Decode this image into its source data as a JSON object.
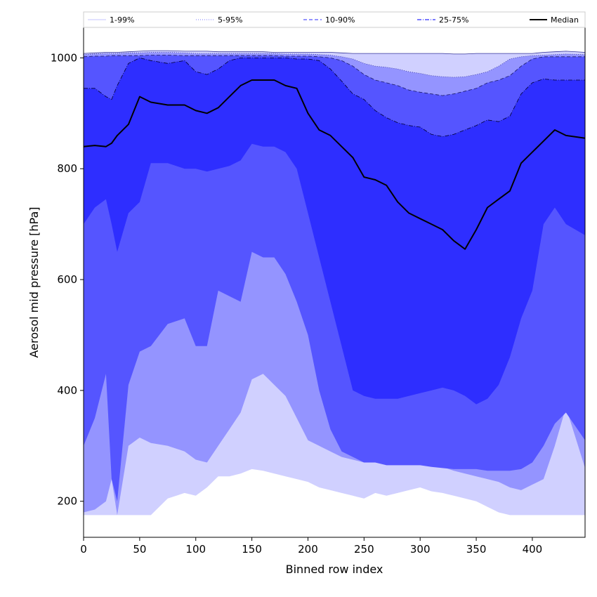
{
  "chart_data": {
    "type": "area",
    "title": "",
    "xlabel": "Binned row index",
    "ylabel": "Aerosol mid pressure [hPa]",
    "xlim": [
      0,
      447
    ],
    "ylim": [
      135,
      1055
    ],
    "xticks": [
      0,
      50,
      100,
      150,
      200,
      250,
      300,
      350,
      400
    ],
    "yticks": [
      200,
      400,
      600,
      800,
      1000
    ],
    "grid": false,
    "legend_position": "top",
    "x": [
      0,
      10,
      20,
      25,
      30,
      40,
      50,
      60,
      75,
      90,
      100,
      110,
      120,
      130,
      140,
      150,
      160,
      170,
      180,
      190,
      200,
      210,
      220,
      230,
      240,
      250,
      260,
      270,
      280,
      290,
      300,
      310,
      320,
      330,
      340,
      350,
      360,
      370,
      380,
      390,
      400,
      410,
      420,
      430,
      447
    ],
    "bands": [
      {
        "name": "1-99%",
        "color": "#d0d0ff",
        "lower": [
          175,
          175,
          175,
          175,
          175,
          175,
          175,
          175,
          205,
          215,
          210,
          225,
          245,
          245,
          250,
          258,
          255,
          250,
          245,
          240,
          235,
          225,
          220,
          215,
          210,
          205,
          215,
          210,
          215,
          220,
          225,
          218,
          215,
          210,
          205,
          200,
          190,
          180,
          175,
          175,
          175,
          175,
          175,
          175,
          175
        ],
        "upper": [
          1008,
          1009,
          1010,
          1010,
          1010,
          1011,
          1012,
          1013,
          1013,
          1012,
          1012,
          1012,
          1011,
          1011,
          1011,
          1011,
          1011,
          1010,
          1010,
          1010,
          1010,
          1010,
          1010,
          1009,
          1008,
          1008,
          1008,
          1008,
          1008,
          1008,
          1008,
          1008,
          1008,
          1007,
          1007,
          1008,
          1008,
          1008,
          1008,
          1008,
          1008,
          1010,
          1011,
          1012,
          1010
        ]
      },
      {
        "name": "5-95%",
        "color": "#9494ff",
        "lower": [
          180,
          185,
          200,
          240,
          175,
          300,
          315,
          305,
          300,
          290,
          275,
          270,
          300,
          330,
          360,
          420,
          430,
          410,
          390,
          350,
          310,
          300,
          290,
          280,
          275,
          270,
          270,
          268,
          268,
          268,
          268,
          265,
          262,
          255,
          250,
          245,
          240,
          235,
          225,
          220,
          230,
          240,
          300,
          370,
          260
        ],
        "upper": [
          1006,
          1007,
          1008,
          1008,
          1008,
          1009,
          1009,
          1010,
          1010,
          1009,
          1008,
          1008,
          1008,
          1008,
          1008,
          1008,
          1008,
          1008,
          1007,
          1007,
          1007,
          1006,
          1005,
          1002,
          998,
          990,
          985,
          983,
          980,
          975,
          972,
          968,
          966,
          965,
          966,
          970,
          975,
          985,
          998,
          1002,
          1004,
          1005,
          1006,
          1007,
          1006
        ]
      },
      {
        "name": "10-90%",
        "color": "#5555ff",
        "lower": [
          300,
          350,
          430,
          240,
          200,
          410,
          470,
          480,
          520,
          530,
          480,
          480,
          580,
          570,
          560,
          650,
          640,
          640,
          610,
          560,
          500,
          400,
          330,
          290,
          280,
          270,
          270,
          265,
          265,
          265,
          265,
          262,
          260,
          258,
          258,
          258,
          255,
          255,
          255,
          258,
          270,
          300,
          340,
          360,
          310
        ],
        "upper": [
          1002,
          1003,
          1003,
          1004,
          1004,
          1004,
          1004,
          1005,
          1005,
          1004,
          1004,
          1004,
          1004,
          1004,
          1004,
          1004,
          1004,
          1004,
          1003,
          1003,
          1003,
          1002,
          1000,
          995,
          985,
          970,
          960,
          955,
          950,
          942,
          938,
          935,
          932,
          935,
          940,
          945,
          955,
          960,
          968,
          985,
          998,
          1002,
          1002,
          1002,
          1002
        ]
      },
      {
        "name": "25-75%",
        "color": "#2e2eff",
        "lower": [
          700,
          730,
          745,
          700,
          650,
          720,
          740,
          810,
          810,
          800,
          800,
          795,
          800,
          805,
          815,
          845,
          840,
          840,
          830,
          800,
          720,
          640,
          560,
          480,
          400,
          390,
          385,
          385,
          385,
          390,
          395,
          400,
          405,
          400,
          390,
          375,
          385,
          410,
          460,
          530,
          580,
          700,
          730,
          700,
          680
        ],
        "upper": [
          945,
          945,
          930,
          925,
          950,
          990,
          1000,
          995,
          990,
          995,
          975,
          970,
          980,
          995,
          1000,
          1000,
          1000,
          1000,
          1000,
          998,
          998,
          995,
          980,
          958,
          935,
          925,
          905,
          892,
          883,
          878,
          875,
          862,
          858,
          862,
          870,
          878,
          888,
          885,
          895,
          935,
          955,
          962,
          960,
          960,
          960
        ]
      }
    ],
    "series": [
      {
        "name": "Median",
        "color": "#000000",
        "values": [
          840,
          842,
          840,
          846,
          860,
          880,
          930,
          920,
          915,
          915,
          905,
          900,
          910,
          930,
          950,
          960,
          960,
          960,
          950,
          945,
          900,
          870,
          860,
          840,
          820,
          785,
          780,
          770,
          740,
          720,
          710,
          700,
          690,
          670,
          655,
          690,
          730,
          745,
          760,
          810,
          830,
          850,
          870,
          860,
          855
        ]
      }
    ],
    "legend": [
      {
        "label": "1-99%",
        "color": "#d0d0ff",
        "style": "solid"
      },
      {
        "label": "5-95%",
        "color": "#9494ff",
        "style": "dotted"
      },
      {
        "label": "10-90%",
        "color": "#5555ff",
        "style": "dashed"
      },
      {
        "label": "25-75%",
        "color": "#2e2eff",
        "style": "dashdot"
      },
      {
        "label": "Median",
        "color": "#000000",
        "style": "solid"
      }
    ]
  }
}
